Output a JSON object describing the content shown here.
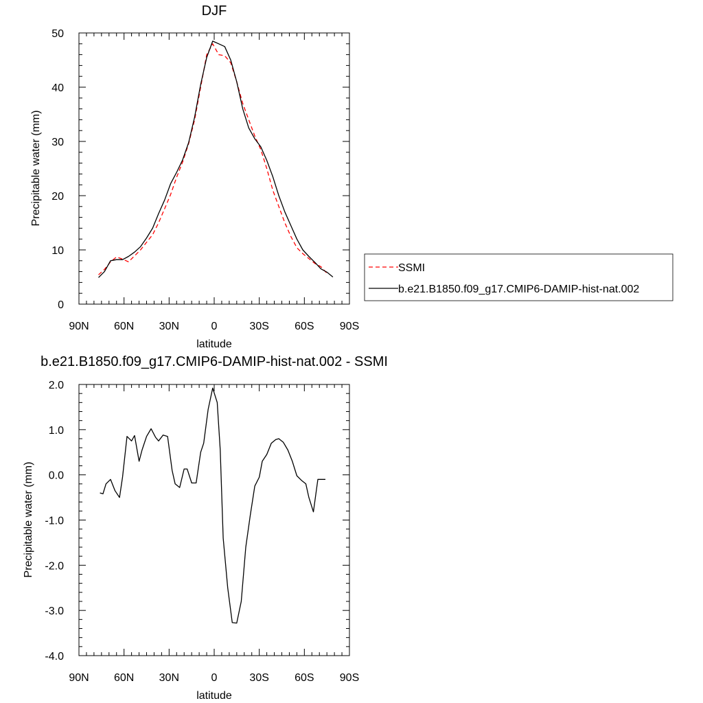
{
  "chart_data": [
    {
      "type": "line",
      "title": "DJF",
      "xlabel": "latitude",
      "ylabel": "Precipitable water (mm)",
      "xlim": [
        90,
        -90
      ],
      "ylim": [
        0,
        50
      ],
      "xticks": [
        90,
        60,
        30,
        0,
        -30,
        -60,
        -90
      ],
      "xtick_labels": [
        "90N",
        "60N",
        "30N",
        "0",
        "30S",
        "60S",
        "90S"
      ],
      "yticks": [
        0,
        10,
        20,
        30,
        40,
        50
      ],
      "ytick_labels": [
        "0",
        "10",
        "20",
        "30",
        "40",
        "50"
      ],
      "grid": false,
      "legend_position": "right-bottom",
      "series": [
        {
          "name": "SSMI",
          "color": "#ff0000",
          "dash": "dashed",
          "x": [
            77,
            73,
            69,
            65,
            61,
            57,
            53,
            49,
            45,
            41,
            37,
            33,
            29,
            25,
            21,
            17,
            13,
            9,
            5,
            1,
            -3,
            -7,
            -11,
            -15,
            -19,
            -23,
            -27,
            -31,
            -35,
            -39,
            -43,
            -47,
            -51,
            -55,
            -59,
            -63,
            -67,
            -71,
            -75
          ],
          "values": [
            5.4,
            6.4,
            7.8,
            8.7,
            8.3,
            7.8,
            8.9,
            10.0,
            11.4,
            12.8,
            15.0,
            17.6,
            20.2,
            23.4,
            26.2,
            29.6,
            34.0,
            40.0,
            46.0,
            48.0,
            46.0,
            45.8,
            44.5,
            41.0,
            37.0,
            34.0,
            31.0,
            28.5,
            25.0,
            21.0,
            18.0,
            15.0,
            12.5,
            10.4,
            9.3,
            8.4,
            7.5,
            6.9,
            5.7
          ]
        },
        {
          "name": "b.e21.B1850.f09_g17.CMIP6-DAMIP-hist-nat.002",
          "color": "#000000",
          "dash": "solid",
          "x": [
            77,
            73,
            69,
            65,
            61,
            57,
            53,
            49,
            45,
            41,
            37,
            33,
            29,
            25,
            21,
            17,
            13,
            9,
            5,
            1,
            -3,
            -7,
            -11,
            -15,
            -19,
            -23,
            -27,
            -31,
            -35,
            -39,
            -43,
            -47,
            -51,
            -55,
            -59,
            -63,
            -67,
            -71,
            -75,
            -79
          ],
          "values": [
            4.9,
            6.0,
            8.0,
            8.2,
            8.2,
            8.8,
            9.6,
            10.6,
            12.2,
            14.0,
            16.7,
            19.2,
            22.2,
            24.3,
            26.6,
            29.8,
            34.5,
            40.5,
            45.5,
            48.5,
            48.0,
            47.5,
            45.0,
            41.0,
            36.0,
            32.5,
            30.5,
            29.0,
            26.5,
            23.5,
            20.0,
            17.0,
            14.5,
            12.0,
            10.0,
            8.8,
            7.7,
            6.5,
            5.9,
            5.0
          ]
        }
      ]
    },
    {
      "type": "line",
      "title": "b.e21.B1850.f09_g17.CMIP6-DAMIP-hist-nat.002 - SSMI",
      "xlabel": "latitude",
      "ylabel": "Precipitable water (mm)",
      "xlim": [
        90,
        -90
      ],
      "ylim": [
        -4,
        2
      ],
      "xticks": [
        90,
        60,
        30,
        0,
        -30,
        -60,
        -90
      ],
      "xtick_labels": [
        "90N",
        "60N",
        "30N",
        "0",
        "30S",
        "60S",
        "90S"
      ],
      "yticks": [
        -4,
        -3,
        -2,
        -1,
        0,
        1,
        2
      ],
      "ytick_labels": [
        "-4.0",
        "-3.0",
        "-2.0",
        "-1.0",
        "0.0",
        "1.0",
        "2.0"
      ],
      "grid": false,
      "series": [
        {
          "color": "#000000",
          "dash": "solid",
          "x": [
            76,
            74,
            72,
            69,
            66,
            63,
            61,
            58,
            55,
            53,
            50,
            48,
            45,
            42,
            39,
            37,
            34,
            31,
            28,
            26,
            23,
            20,
            18,
            15,
            12,
            9,
            7,
            4,
            1,
            -2,
            -4,
            -6,
            -9,
            -12,
            -15,
            -18,
            -21,
            -24,
            -27,
            -30,
            -32,
            -35,
            -38,
            -41,
            -43,
            -46,
            -49,
            -52,
            -55,
            -58,
            -61,
            -63,
            -66,
            -69,
            -72,
            -74
          ],
          "values": [
            -0.4,
            -0.42,
            -0.2,
            -0.1,
            -0.35,
            -0.5,
            -0.05,
            0.85,
            0.75,
            0.87,
            0.3,
            0.55,
            0.85,
            1.02,
            0.83,
            0.75,
            0.88,
            0.85,
            0.1,
            -0.2,
            -0.28,
            0.13,
            0.13,
            -0.18,
            -0.18,
            0.5,
            0.7,
            1.45,
            1.92,
            1.6,
            0.55,
            -1.4,
            -2.5,
            -3.27,
            -3.28,
            -2.8,
            -1.6,
            -0.9,
            -0.25,
            -0.05,
            0.3,
            0.45,
            0.7,
            0.78,
            0.8,
            0.72,
            0.55,
            0.3,
            -0.02,
            -0.12,
            -0.2,
            -0.5,
            -0.82,
            -0.1,
            -0.1,
            -0.1
          ]
        }
      ]
    }
  ]
}
